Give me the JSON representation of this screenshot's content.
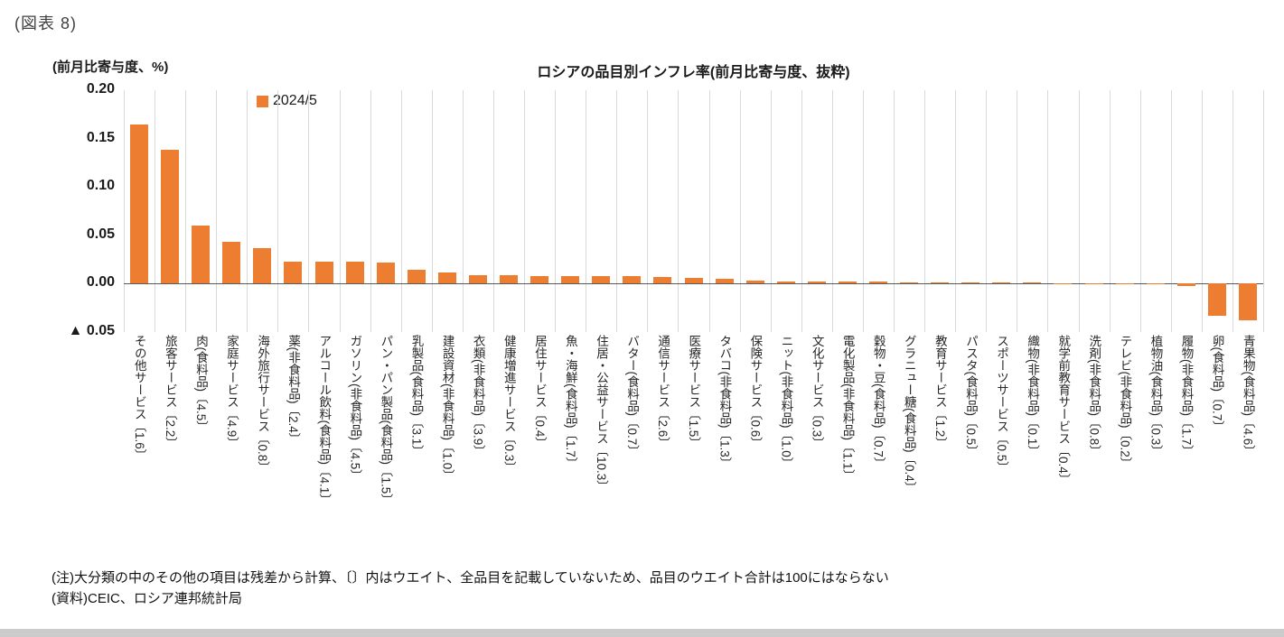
{
  "figure_label": "(図表 8)",
  "chart_data": {
    "type": "bar",
    "title": "ロシアの品目別インフレ率(前月比寄与度、抜粋)",
    "ylabel": "(前月比寄与度、%)",
    "series_name": "2024/5",
    "bar_color": "#ED7D31",
    "grid": "vertical-only",
    "legend_position": "top-left-inside",
    "ylim": [
      -0.05,
      0.2
    ],
    "ytick_values": [
      0.2,
      0.15,
      0.1,
      0.05,
      0.0,
      -0.05
    ],
    "ytick_labels": [
      "0.20",
      "0.15",
      "0.10",
      "0.05",
      "0.00",
      "▲ 0.05"
    ],
    "categories": [
      "その他サービス〔1.6〕",
      "旅客サービス〔2.2〕",
      "肉(食料品)〔4.5〕",
      "家庭サービス〔4.9〕",
      "海外旅行サービス〔0.8〕",
      "薬(非食料品)〔2.4〕",
      "アルコール飲料(食料品)〔4.1〕",
      "ガソリン(非食料品)〔4.5〕",
      "パン・パン製品(食料品)〔1.5〕",
      "乳製品(食料品)〔3.1〕",
      "建設資材(非食料品)〔1.0〕",
      "衣類(非食料品)〔3.9〕",
      "健康増進サービス〔0.3〕",
      "居住サービス〔0.4〕",
      "魚・海鮮(食料品)〔1.7〕",
      "住居・公益サービス〔10.3〕",
      "バター(食料品)〔0.7〕",
      "通信サービス〔2.6〕",
      "医療サービス〔1.5〕",
      "タバコ(非食料品)〔1.3〕",
      "保険サービス〔0.6〕",
      "ニット(非食料品)〔1.0〕",
      "文化サービス〔0.3〕",
      "電化製品(非食料品)〔1.1〕",
      "穀物・豆(食料品)〔0.7〕",
      "グラニュー糖(食料品)〔0.4〕",
      "教育サービス〔1.2〕",
      "パスタ(食料品)〔0.5〕",
      "スポーツサービス〔0.5〕",
      "織物(非食料品)〔0.1〕",
      "就学前教育サービス〔0.4〕",
      "洗剤(非食料品)〔0.8〕",
      "テレビ(非食料品)〔0.2〕",
      "植物油(食料品)〔0.3〕",
      "履物(非食料品)〔1.7〕",
      "卵(食料品)〔0.7〕",
      "青果物(食料品)〔4.6〕"
    ],
    "values": [
      0.165,
      0.138,
      0.06,
      0.043,
      0.037,
      0.023,
      0.023,
      0.023,
      0.022,
      0.014,
      0.012,
      0.009,
      0.009,
      0.008,
      0.008,
      0.008,
      0.008,
      0.007,
      0.006,
      0.005,
      0.003,
      0.002,
      0.002,
      0.002,
      0.002,
      0.001,
      0.001,
      0.001,
      0.001,
      0.001,
      0.0005,
      0.0005,
      0.0003,
      0.0003,
      -0.002,
      -0.033,
      -0.038
    ]
  },
  "notes": [
    "(注)大分類の中のその他の項目は残差から計算、〔〕内はウエイト、全品目を記載していないため、品目のウエイト合計は100にはならない",
    "(資料)CEIC、ロシア連邦統計局"
  ]
}
